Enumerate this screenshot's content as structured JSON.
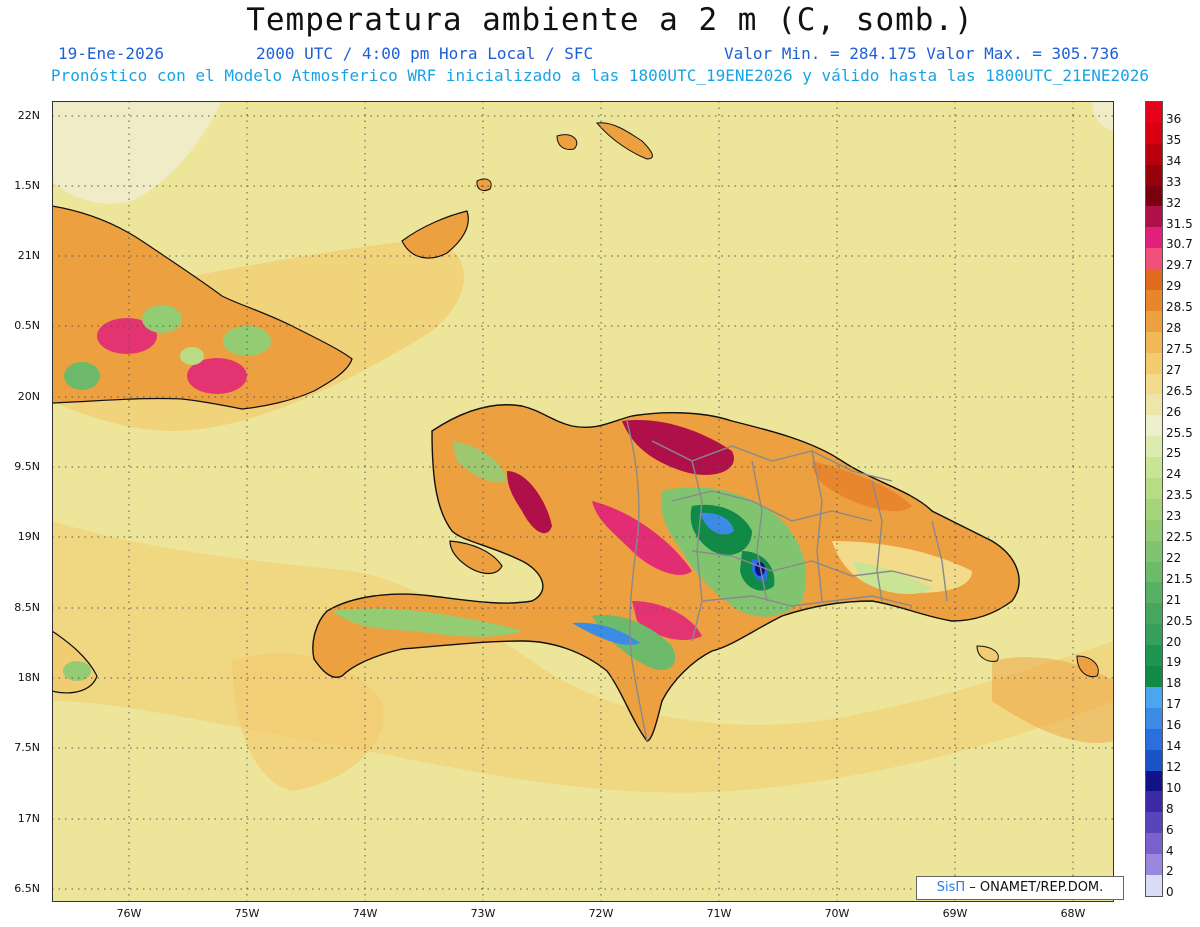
{
  "header": {
    "title": "Temperatura ambiente a 2 m (C, somb.)",
    "date": "19-Ene-2026",
    "time": "2000 UTC / 4:00 pm Hora Local / SFC",
    "stats": "Valor Min. = 284.175  Valor Max. = 305.736",
    "model_line": "Pronóstico con el Modelo Atmosferico WRF inicializado a las 1800UTC_19ENE2026 y válido hasta las  1800UTC_21ENE2026"
  },
  "map": {
    "lat_labels": [
      "22N",
      "1.5N",
      "21N",
      "0.5N",
      "20N",
      "9.5N",
      "19N",
      "8.5N",
      "18N",
      "7.5N",
      "17N",
      "6.5N"
    ],
    "lon_labels": [
      "76W",
      "75W",
      "74W",
      "73W",
      "72W",
      "71W",
      "70W",
      "69W",
      "68W"
    ]
  },
  "colorbar": {
    "labels": [
      "36",
      "35",
      "34",
      "33",
      "32",
      "31.5",
      "30.7",
      "29.7",
      "29",
      "28.5",
      "28",
      "27.5",
      "27",
      "26.5",
      "26",
      "25.5",
      "25",
      "24",
      "23.5",
      "23",
      "22.5",
      "22",
      "21.5",
      "21",
      "20.5",
      "20",
      "19",
      "18",
      "17",
      "16",
      "14",
      "12",
      "10",
      "8",
      "6",
      "4",
      "2",
      "0"
    ],
    "colors": [
      "#e8001a",
      "#d8000f",
      "#b8000c",
      "#960008",
      "#7a0010",
      "#b0104a",
      "#e0207a",
      "#f0507a",
      "#e06a1e",
      "#e8862e",
      "#eda040",
      "#f2b858",
      "#f2cc70",
      "#f2dc8c",
      "#eee6a8",
      "#eef0cc",
      "#dcecac",
      "#c8e494",
      "#b8dc84",
      "#a6d47a",
      "#94cc74",
      "#80c470",
      "#6cba6a",
      "#58b064",
      "#46a660",
      "#34a05c",
      "#1e9650",
      "#108a46",
      "#4aa6ee",
      "#3c8ce6",
      "#2a70dc",
      "#1a54c8",
      "#10128a",
      "#3a2aa8",
      "#5a44bc",
      "#7a62cc",
      "#9a88de",
      "#d8dcf6"
    ]
  },
  "credit": {
    "sis": "SisΠ",
    "rest": "– ONAMET/REP.DOM."
  }
}
